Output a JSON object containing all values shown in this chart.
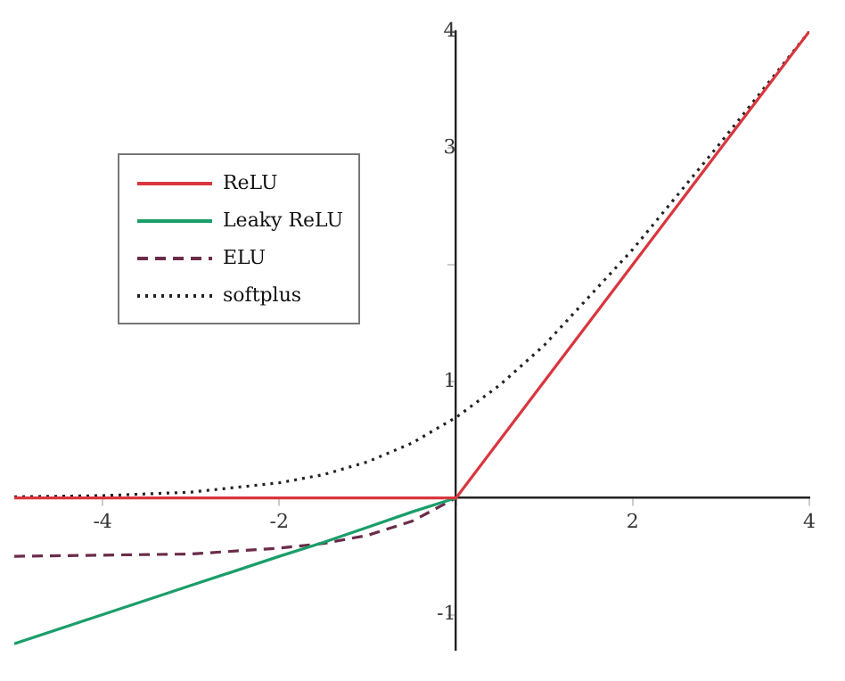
{
  "chart_data": {
    "type": "line",
    "x": [
      -5,
      -4,
      -3,
      -2,
      -1.5,
      -1,
      -0.5,
      0,
      0.5,
      1,
      2,
      3,
      4
    ],
    "series": [
      {
        "name": "ReLU",
        "color": "#d9363e",
        "line_style": "solid",
        "values": [
          0,
          0,
          0,
          0,
          0,
          0,
          0,
          0,
          0.5,
          1,
          2,
          3,
          4
        ]
      },
      {
        "name": "Leaky ReLU",
        "color": "#1a9e6a",
        "line_style": "solid",
        "values": [
          -1.25,
          -1,
          -0.75,
          -0.5,
          -0.38,
          -0.25,
          -0.12,
          0,
          null,
          null,
          null,
          null,
          null
        ]
      },
      {
        "name": "ELU",
        "color": "#6b2c4a",
        "line_style": "dashed",
        "values": [
          -0.5,
          -0.49,
          -0.48,
          -0.43,
          -0.39,
          -0.32,
          -0.2,
          0,
          null,
          null,
          null,
          null,
          null
        ]
      },
      {
        "name": "softplus",
        "color": "#222222",
        "line_style": "dotted",
        "values": [
          0.01,
          0.02,
          0.05,
          0.13,
          0.2,
          0.31,
          0.47,
          0.69,
          0.97,
          1.31,
          2.13,
          3.05,
          4
        ]
      }
    ],
    "xlim": [
      -5,
      4
    ],
    "ylim": [
      -1.3,
      4
    ],
    "xticks": [
      -4,
      -2,
      {
        "value": 0,
        "label": null
      },
      2,
      4
    ],
    "yticks": [
      -1,
      {
        "value": 0,
        "label": null
      },
      1,
      {
        "value": 2,
        "label": null
      },
      3,
      4
    ],
    "grid": false,
    "legend": "top left",
    "marker": "none"
  }
}
